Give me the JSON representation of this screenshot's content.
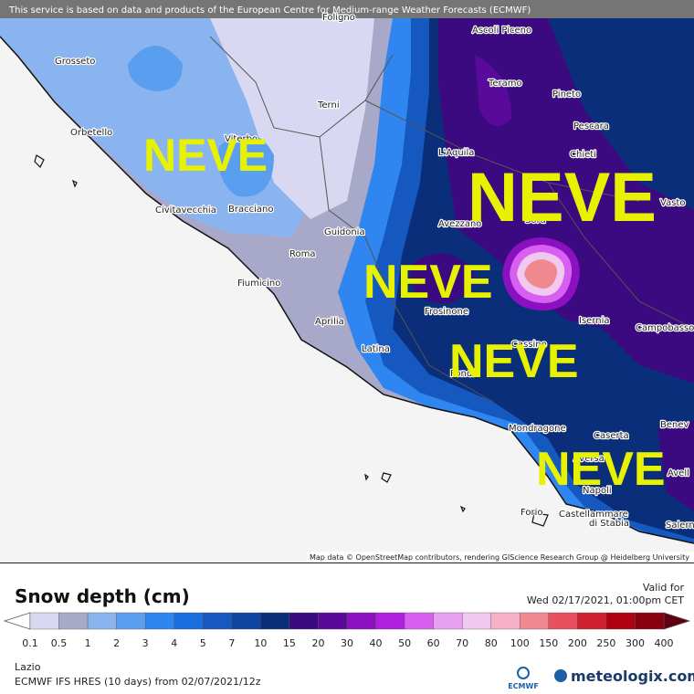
{
  "banner": "This service is based on data and products of the European Centre for Medium-range Weather Forecasts (ECMWF)",
  "map": {
    "cities": [
      "Foligno",
      "Ascoli Piceno",
      "Grosseto",
      "Teramo",
      "Pineto",
      "Terni",
      "Pescara",
      "Orbetello",
      "Viterbo",
      "Chieti",
      "L'Aquila",
      "Vasto",
      "Civitavecchia",
      "Bracciano",
      "Avezzano",
      "Sora",
      "Guidonia",
      "Roma",
      "Fiumicino",
      "Frosinone",
      "Isernia",
      "Campobasso",
      "Aprilia",
      "Latina",
      "Cassino",
      "Fondi",
      "Mondragone",
      "Caserta",
      "Benev",
      "Aversa",
      "Avell",
      "Napoli",
      "Forio",
      "Castellammare",
      "di Stabia",
      "Salern"
    ],
    "labels": [
      "NEVE",
      "NEVE",
      "NEVE",
      "NEVE",
      "NEVE"
    ],
    "attribution": "Map data © OpenStreetMap contributors, rendering GIScience Research Group @ Heidelberg University"
  },
  "legend": {
    "title": "Snow depth (cm)",
    "valid_label": "Valid for",
    "valid_time": "Wed 02/17/2021, 01:00pm CET",
    "labels": [
      "0.1",
      "0.5",
      "1",
      "2",
      "3",
      "4",
      "5",
      "7",
      "10",
      "15",
      "20",
      "30",
      "40",
      "50",
      "60",
      "70",
      "80",
      "100",
      "150",
      "200",
      "250",
      "300",
      "400"
    ],
    "colors": [
      "#d8d8f2",
      "#a8a8c8",
      "#8ab4f0",
      "#5a9ef0",
      "#2f86f0",
      "#1a6ee0",
      "#1558c0",
      "#0f45a0",
      "#0a2e7a",
      "#3c0a80",
      "#5a0a9a",
      "#8a10c0",
      "#b020e0",
      "#d860f0",
      "#e8a0f0",
      "#f0c8f0",
      "#f8b0c8",
      "#f08890",
      "#e85060",
      "#d02030",
      "#b00010",
      "#880010"
    ],
    "under_color": "#ffffff",
    "over_color": "#600010"
  },
  "footer": {
    "region": "Lazio",
    "model": "ECMWF IFS HRES (10 days) from 02/07/2021/12z",
    "ecmwf": "ECMWF",
    "brand": "meteologix.com"
  }
}
